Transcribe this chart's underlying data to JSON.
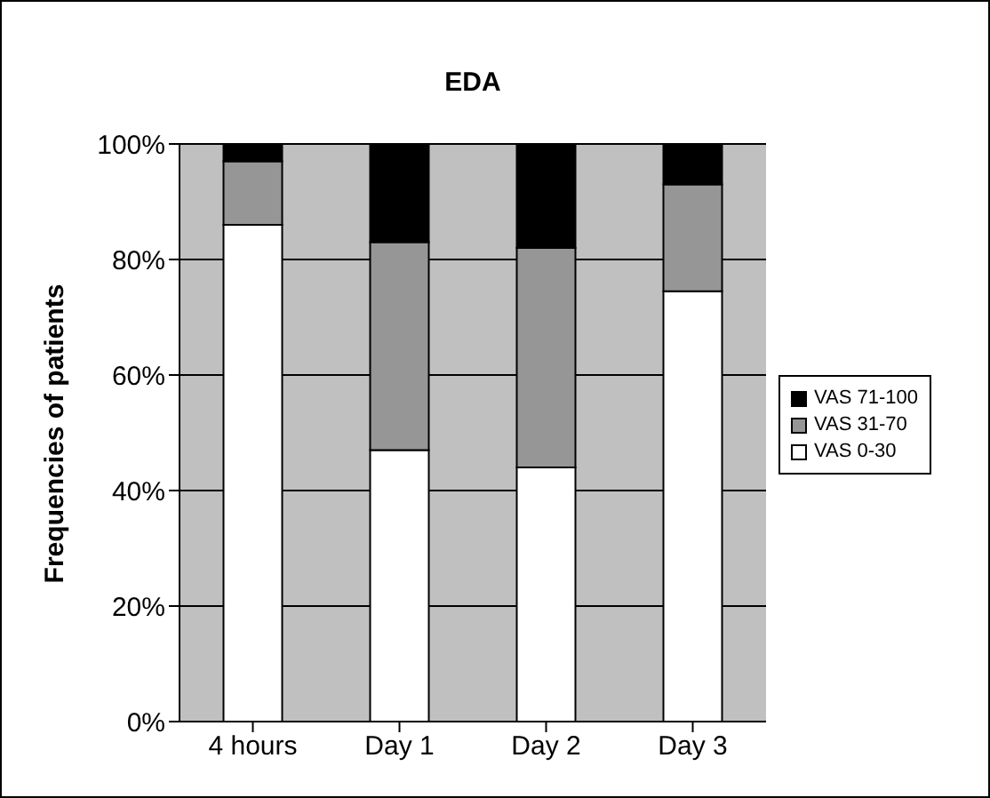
{
  "chart_data": {
    "type": "bar",
    "title": "EDA",
    "ylabel": "Frequencies of patients",
    "categories": [
      "4 hours",
      "Day 1",
      "Day 2",
      "Day 3"
    ],
    "stacked": true,
    "series": [
      {
        "name": "VAS 0-30",
        "color": "#ffffff",
        "values": [
          86,
          47,
          44,
          74.5
        ]
      },
      {
        "name": "VAS 31-70",
        "color": "#969696",
        "values": [
          11,
          36,
          38,
          18.5
        ]
      },
      {
        "name": "VAS 71-100",
        "color": "#000000",
        "values": [
          3,
          17,
          18,
          7
        ]
      }
    ],
    "ylim": [
      0,
      100
    ],
    "yticks": [
      {
        "value": 0,
        "label": "0%"
      },
      {
        "value": 20,
        "label": "20%"
      },
      {
        "value": 40,
        "label": "40%"
      },
      {
        "value": 60,
        "label": "60%"
      },
      {
        "value": 80,
        "label": "80%"
      },
      {
        "value": 100,
        "label": "100%"
      }
    ],
    "grid": "y",
    "legend": "right"
  }
}
